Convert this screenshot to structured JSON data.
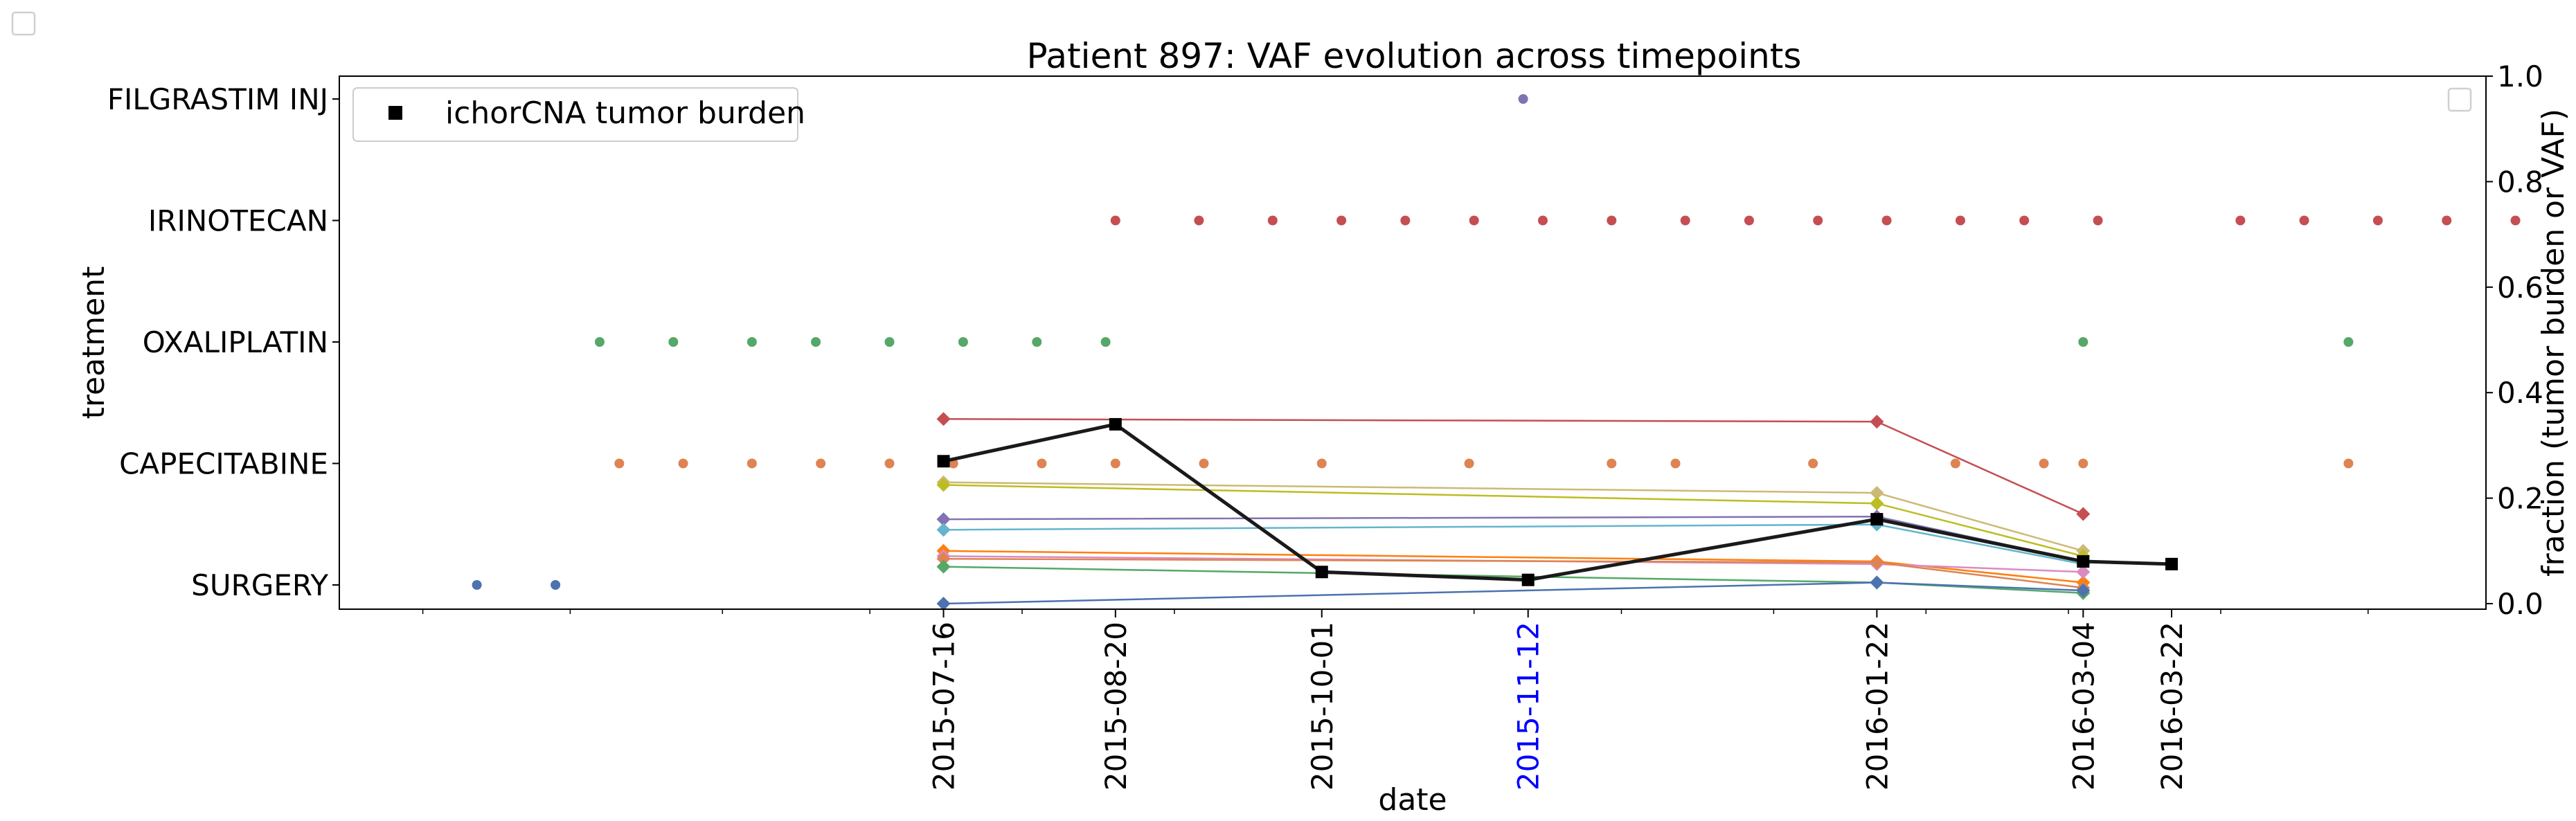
{
  "chart_data": {
    "type": "scatter",
    "title": "Patient 897: VAF evolution across timepoints",
    "xlabel": "date",
    "ylabel_left": "treatment",
    "ylabel_right": "fraction (tumor burden or VAF)",
    "x_range": [
      "2015-03-15",
      "2016-05-25"
    ],
    "right_ylim": [
      0,
      1.0
    ],
    "right_yticks": [
      "0.0",
      "0.2",
      "0.4",
      "0.6",
      "0.8",
      "1.0"
    ],
    "treatments": [
      "SURGERY",
      "CAPECITABINE",
      "OXALIPLATIN",
      "IRINOTECAN",
      "FILGRASTIM INJ"
    ],
    "timepoints": [
      {
        "date": "2015-07-16",
        "highlight": false
      },
      {
        "date": "2015-08-20",
        "highlight": false
      },
      {
        "date": "2015-10-01",
        "highlight": false
      },
      {
        "date": "2015-11-12",
        "highlight": true
      },
      {
        "date": "2016-01-22",
        "highlight": false
      },
      {
        "date": "2016-03-04",
        "highlight": false
      },
      {
        "date": "2016-03-22",
        "highlight": false
      }
    ],
    "treatment_events": [
      {
        "treatment": "SURGERY",
        "color": "#4c72b0",
        "dates": [
          "2015-04-12",
          "2015-04-28"
        ]
      },
      {
        "treatment": "CAPECITABINE",
        "color": "#dd8452",
        "dates": [
          "2015-05-11",
          "2015-05-24",
          "2015-06-07",
          "2015-06-21",
          "2015-07-05",
          "2015-07-18",
          "2015-08-05",
          "2015-08-20",
          "2015-09-07",
          "2015-10-01",
          "2015-10-31",
          "2015-11-29",
          "2015-12-12",
          "2016-01-09",
          "2016-02-07",
          "2016-02-25",
          "2016-03-04",
          "2016-04-27"
        ]
      },
      {
        "treatment": "OXALIPLATIN",
        "color": "#55a868",
        "dates": [
          "2015-05-07",
          "2015-05-22",
          "2015-06-07",
          "2015-06-20",
          "2015-07-05",
          "2015-07-20",
          "2015-08-04",
          "2015-08-18",
          "2016-03-04",
          "2016-04-27"
        ]
      },
      {
        "treatment": "IRINOTECAN",
        "color": "#c44e52",
        "dates": [
          "2015-08-20",
          "2015-09-06",
          "2015-09-21",
          "2015-10-05",
          "2015-10-18",
          "2015-11-01",
          "2015-11-15",
          "2015-11-29",
          "2015-12-14",
          "2015-12-27",
          "2016-01-10",
          "2016-01-24",
          "2016-02-08",
          "2016-02-21",
          "2016-03-07",
          "2016-04-05",
          "2016-04-18",
          "2016-05-03",
          "2016-05-17",
          "2016-05-31"
        ]
      },
      {
        "treatment": "FILGRASTIM INJ",
        "color": "#8172b3",
        "dates": [
          "2015-11-11"
        ]
      }
    ],
    "tumor_burden": {
      "name": "ichorCNA tumor burden",
      "color": "#1a1a1a",
      "points": [
        [
          "2015-07-16",
          0.27
        ],
        [
          "2015-08-20",
          0.34
        ],
        [
          "2015-10-01",
          0.06
        ],
        [
          "2015-11-12",
          0.045
        ],
        [
          "2016-01-22",
          0.16
        ],
        [
          "2016-03-04",
          0.08
        ],
        [
          "2016-03-22",
          0.075
        ]
      ]
    },
    "vaf_series": [
      {
        "color": "#c44e52",
        "points": [
          [
            "2015-07-16",
            0.35
          ],
          [
            "2016-01-22",
            0.345
          ],
          [
            "2016-03-04",
            0.17
          ]
        ]
      },
      {
        "color": "#ccb974",
        "points": [
          [
            "2015-07-16",
            0.23
          ],
          [
            "2016-01-22",
            0.21
          ],
          [
            "2016-03-04",
            0.1
          ]
        ]
      },
      {
        "color": "#bcbd22",
        "points": [
          [
            "2015-07-16",
            0.225
          ],
          [
            "2016-01-22",
            0.19
          ],
          [
            "2016-03-04",
            0.09
          ]
        ]
      },
      {
        "color": "#8172b3",
        "points": [
          [
            "2015-07-16",
            0.16
          ],
          [
            "2016-01-22",
            0.165
          ],
          [
            "2016-03-04",
            0.08
          ]
        ]
      },
      {
        "color": "#64b5cd",
        "points": [
          [
            "2015-07-16",
            0.14
          ],
          [
            "2016-01-22",
            0.15
          ],
          [
            "2016-03-04",
            0.075
          ]
        ]
      },
      {
        "color": "#ff7f0e",
        "points": [
          [
            "2015-07-16",
            0.1
          ],
          [
            "2016-01-22",
            0.08
          ],
          [
            "2016-03-04",
            0.04
          ]
        ]
      },
      {
        "color": "#da8bc3",
        "points": [
          [
            "2015-07-16",
            0.09
          ],
          [
            "2016-01-22",
            0.075
          ],
          [
            "2016-03-04",
            0.06
          ]
        ]
      },
      {
        "color": "#dd8452",
        "points": [
          [
            "2015-07-16",
            0.085
          ],
          [
            "2016-01-22",
            0.078
          ],
          [
            "2016-03-04",
            0.03
          ]
        ]
      },
      {
        "color": "#55a868",
        "points": [
          [
            "2015-07-16",
            0.07
          ],
          [
            "2016-01-22",
            0.04
          ],
          [
            "2016-03-04",
            0.02
          ]
        ]
      },
      {
        "color": "#4c72b0",
        "points": [
          [
            "2015-07-16",
            0.0
          ],
          [
            "2016-01-22",
            0.04
          ],
          [
            "2016-03-04",
            0.025
          ]
        ]
      }
    ],
    "legend": {
      "placement": "top-left",
      "entries": [
        "ichorCNA tumor burden"
      ]
    },
    "grid": false
  }
}
